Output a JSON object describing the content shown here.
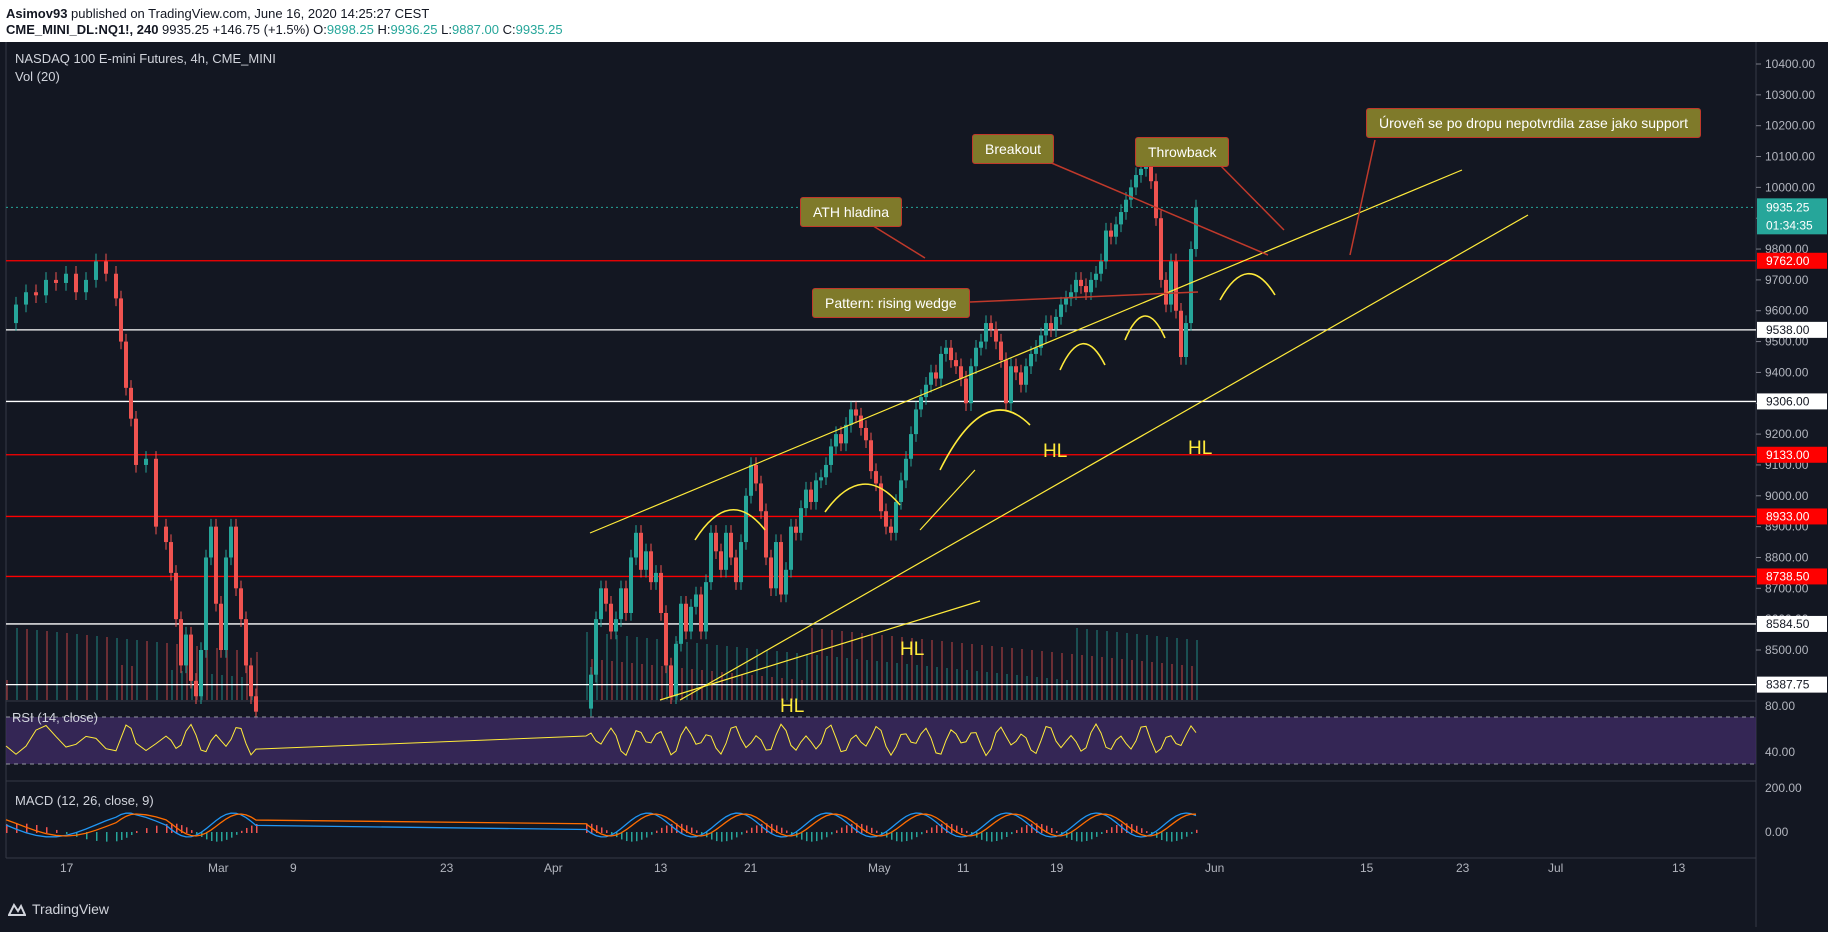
{
  "header": {
    "publisher": "Asimov93",
    "published_text": "published on TradingView.com, June 16, 2020 14:25:27 CEST",
    "symbol": "CME_MINI_DL:NQ1!, 240",
    "last": "9935.25",
    "change": "+146.75 (+1.5%)",
    "o_label": "O:",
    "o": "9898.25",
    "h_label": "H:",
    "h": "9936.25",
    "l_label": "L:",
    "l": "9887.00",
    "c_label": "C:",
    "c": "9935.25"
  },
  "main_pane": {
    "title": "NASDAQ 100 E-mini Futures, 4h, CME_MINI",
    "volume_label": "Vol (20)"
  },
  "rsi_pane": {
    "label": "RSI (14, close)"
  },
  "macd_pane": {
    "label": "MACD (12, 26, close, 9)"
  },
  "footer": {
    "brand": "TradingView"
  },
  "annotations": {
    "ath": "ATH hladina",
    "breakout": "Breakout",
    "throwback": "Throwback",
    "pattern": "Pattern: rising wedge",
    "support": "Úroveň se po dropu nepotvrdila zase jako support",
    "hl1": "HL",
    "hl2": "HL",
    "hl3": "HL",
    "hl4": "HL"
  },
  "chart_data": {
    "type": "candlestick",
    "symbol": "CME_MINI_DL:NQ1!",
    "timeframe": "4h",
    "price_axis": {
      "ylim": [
        8310,
        10480
      ],
      "ticks": [
        8500,
        8600,
        8700,
        8800,
        8900,
        9000,
        9100,
        9200,
        9300,
        9400,
        9500,
        9600,
        9700,
        9800,
        9900,
        10000,
        10100,
        10200,
        10300,
        10400
      ],
      "tick_labels": [
        "8500.00",
        "8600.00",
        "8700.00",
        "8800.00",
        "8900.00",
        "9000.00",
        "9100.00",
        "9200.00",
        "9300.00",
        "9400.00",
        "9500.00",
        "9600.00",
        "9700.00",
        "9800.00",
        "9900.00",
        "10000.00",
        "10100.00",
        "10200.00",
        "10300.00",
        "10400.00"
      ]
    },
    "time_axis": {
      "labels": [
        "17",
        "Mar",
        "9",
        "23",
        "Apr",
        "13",
        "21",
        "May",
        "11",
        "19",
        "Jun",
        "15",
        "23",
        "Jul",
        "13"
      ]
    },
    "horizontal_levels": [
      {
        "value": 9762.0,
        "label": "9762.00",
        "color": "#ff0000"
      },
      {
        "value": 9538.0,
        "label": "9538.00",
        "color": "#ffffff"
      },
      {
        "value": 9306.0,
        "label": "9306.00",
        "color": "#ffffff"
      },
      {
        "value": 9133.0,
        "label": "9133.00",
        "color": "#ff0000"
      },
      {
        "value": 8933.0,
        "label": "8933.00",
        "color": "#ff0000"
      },
      {
        "value": 8738.5,
        "label": "8738.50",
        "color": "#ff0000"
      },
      {
        "value": 8584.5,
        "label": "8584.50",
        "color": "#ffffff"
      },
      {
        "value": 8387.75,
        "label": "8387.75",
        "color": "#ffffff"
      }
    ],
    "last_price": {
      "value": 9935.25,
      "label": "9935.25",
      "countdown": "01:34:35",
      "color": "#26a69a"
    },
    "series_close": [
      [
        0,
        9560
      ],
      [
        10,
        9620
      ],
      [
        20,
        9660
      ],
      [
        30,
        9650
      ],
      [
        40,
        9700
      ],
      [
        50,
        9690
      ],
      [
        60,
        9720
      ],
      [
        70,
        9660
      ],
      [
        80,
        9700
      ],
      [
        90,
        9760
      ],
      [
        100,
        9720
      ],
      [
        110,
        9640
      ],
      [
        115,
        9500
      ],
      [
        120,
        9350
      ],
      [
        125,
        9250
      ],
      [
        130,
        9100
      ],
      [
        140,
        9120
      ],
      [
        150,
        8900
      ],
      [
        160,
        8850
      ],
      [
        165,
        8750
      ],
      [
        170,
        8600
      ],
      [
        175,
        8450
      ],
      [
        180,
        8550
      ],
      [
        185,
        8400
      ],
      [
        190,
        8350
      ],
      [
        195,
        8500
      ],
      [
        200,
        8800
      ],
      [
        205,
        8900
      ],
      [
        210,
        8650
      ],
      [
        215,
        8500
      ],
      [
        220,
        8800
      ],
      [
        225,
        8900
      ],
      [
        230,
        8700
      ],
      [
        235,
        8600
      ],
      [
        240,
        8450
      ],
      [
        245,
        8350
      ],
      [
        250,
        8300
      ],
      [
        580,
        8310
      ],
      [
        585,
        8420
      ],
      [
        590,
        8600
      ],
      [
        595,
        8700
      ],
      [
        600,
        8650
      ],
      [
        605,
        8560
      ],
      [
        610,
        8600
      ],
      [
        615,
        8700
      ],
      [
        620,
        8620
      ],
      [
        625,
        8800
      ],
      [
        630,
        8880
      ],
      [
        635,
        8760
      ],
      [
        640,
        8820
      ],
      [
        645,
        8720
      ],
      [
        650,
        8750
      ],
      [
        655,
        8620
      ],
      [
        660,
        8450
      ],
      [
        665,
        8350
      ],
      [
        670,
        8520
      ],
      [
        675,
        8650
      ],
      [
        680,
        8560
      ],
      [
        685,
        8640
      ],
      [
        690,
        8680
      ],
      [
        695,
        8560
      ],
      [
        700,
        8720
      ],
      [
        705,
        8880
      ],
      [
        710,
        8820
      ],
      [
        715,
        8760
      ],
      [
        720,
        8880
      ],
      [
        725,
        8800
      ],
      [
        730,
        8720
      ],
      [
        735,
        8850
      ],
      [
        740,
        9000
      ],
      [
        745,
        9100
      ],
      [
        750,
        9040
      ],
      [
        755,
        8950
      ],
      [
        760,
        8800
      ],
      [
        765,
        8700
      ],
      [
        770,
        8850
      ],
      [
        775,
        8680
      ],
      [
        780,
        8760
      ],
      [
        785,
        8900
      ],
      [
        790,
        8880
      ],
      [
        795,
        8960
      ],
      [
        800,
        9020
      ],
      [
        805,
        8980
      ],
      [
        810,
        9050
      ],
      [
        815,
        9060
      ],
      [
        820,
        9100
      ],
      [
        825,
        9160
      ],
      [
        830,
        9200
      ],
      [
        835,
        9170
      ],
      [
        840,
        9230
      ],
      [
        845,
        9280
      ],
      [
        850,
        9260
      ],
      [
        855,
        9220
      ],
      [
        860,
        9180
      ],
      [
        865,
        9080
      ],
      [
        870,
        9040
      ],
      [
        875,
        8950
      ],
      [
        880,
        8900
      ],
      [
        885,
        8880
      ],
      [
        890,
        8980
      ],
      [
        895,
        9050
      ],
      [
        900,
        9120
      ],
      [
        905,
        9200
      ],
      [
        910,
        9280
      ],
      [
        915,
        9320
      ],
      [
        920,
        9360
      ],
      [
        925,
        9400
      ],
      [
        930,
        9380
      ],
      [
        935,
        9460
      ],
      [
        940,
        9480
      ],
      [
        945,
        9440
      ],
      [
        950,
        9420
      ],
      [
        955,
        9380
      ],
      [
        960,
        9300
      ],
      [
        965,
        9420
      ],
      [
        970,
        9480
      ],
      [
        975,
        9500
      ],
      [
        980,
        9560
      ],
      [
        985,
        9540
      ],
      [
        990,
        9500
      ],
      [
        995,
        9440
      ],
      [
        1000,
        9300
      ],
      [
        1005,
        9420
      ],
      [
        1010,
        9400
      ],
      [
        1015,
        9360
      ],
      [
        1020,
        9420
      ],
      [
        1025,
        9460
      ],
      [
        1030,
        9480
      ],
      [
        1035,
        9520
      ],
      [
        1040,
        9560
      ],
      [
        1045,
        9540
      ],
      [
        1050,
        9580
      ],
      [
        1055,
        9620
      ],
      [
        1060,
        9640
      ],
      [
        1065,
        9660
      ],
      [
        1070,
        9700
      ],
      [
        1075,
        9680
      ],
      [
        1080,
        9660
      ],
      [
        1085,
        9700
      ],
      [
        1090,
        9720
      ],
      [
        1095,
        9760
      ],
      [
        1100,
        9860
      ],
      [
        1105,
        9840
      ],
      [
        1110,
        9880
      ],
      [
        1115,
        9920
      ],
      [
        1120,
        9960
      ],
      [
        1125,
        10000
      ],
      [
        1130,
        10040
      ],
      [
        1135,
        10060
      ],
      [
        1140,
        10080
      ],
      [
        1145,
        10020
      ],
      [
        1150,
        9900
      ],
      [
        1155,
        9700
      ],
      [
        1160,
        9620
      ],
      [
        1165,
        9760
      ],
      [
        1170,
        9600
      ],
      [
        1175,
        9450
      ],
      [
        1180,
        9560
      ],
      [
        1185,
        9800
      ],
      [
        1190,
        9935
      ]
    ],
    "rsi": {
      "ylim": [
        20,
        90
      ],
      "levels": [
        70,
        30
      ],
      "tick_labels": [
        "80.00",
        "40.00"
      ]
    },
    "macd": {
      "tick_labels": [
        "200.00",
        "0.00"
      ]
    }
  }
}
